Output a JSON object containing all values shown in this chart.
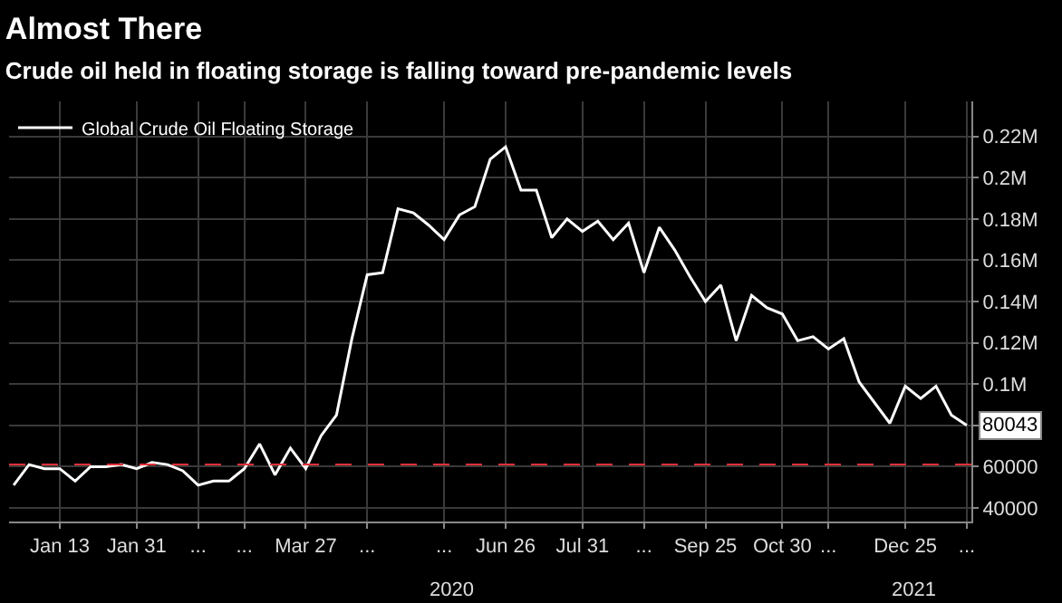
{
  "chart_data": {
    "type": "line",
    "title": "Almost There",
    "subtitle": "Crude oil held in floating storage is falling toward pre-pandemic levels",
    "categories": [
      null,
      null,
      null,
      "Jan 13",
      null,
      null,
      null,
      null,
      "Jan 31",
      null,
      null,
      null,
      "...",
      null,
      null,
      "...",
      null,
      null,
      null,
      "Mar 27",
      null,
      null,
      null,
      "...",
      null,
      null,
      null,
      null,
      "...",
      null,
      null,
      null,
      "Jun 26",
      null,
      null,
      null,
      null,
      "Jul 31",
      null,
      null,
      null,
      "...",
      null,
      null,
      null,
      "Sep 25",
      null,
      null,
      null,
      null,
      "Oct 30",
      null,
      null,
      "...",
      null,
      null,
      null,
      null,
      "Dec 25",
      null,
      null,
      null,
      "..."
    ],
    "series": [
      {
        "name": "Global Crude Oil Floating Storage",
        "color": "#ffffff",
        "values": [
          51000,
          61000,
          59000,
          59000,
          53000,
          60000,
          60000,
          61000,
          59000,
          62000,
          61000,
          58000,
          51000,
          53000,
          53000,
          59000,
          71000,
          56000,
          69000,
          59000,
          75000,
          85000,
          122000,
          153000,
          154000,
          185000,
          183000,
          177000,
          170000,
          182000,
          186000,
          209000,
          215000,
          194000,
          194000,
          171000,
          180000,
          174000,
          179000,
          170000,
          178000,
          154000,
          176000,
          165000,
          152000,
          140000,
          148000,
          121000,
          143000,
          137000,
          134000,
          121000,
          123000,
          117000,
          122000,
          101000,
          91000,
          81000,
          99000,
          93000,
          99000,
          85000,
          80043
        ],
        "value_labels": [
          null,
          null,
          null,
          null,
          null,
          null,
          null,
          null,
          null,
          null,
          null,
          null,
          null,
          null,
          null,
          null,
          null,
          null,
          null,
          null,
          null,
          null,
          null,
          null,
          null,
          null,
          null,
          null,
          null,
          null,
          null,
          null,
          null,
          null,
          null,
          null,
          null,
          null,
          null,
          null,
          null,
          null,
          null,
          null,
          null,
          null,
          null,
          null,
          null,
          null,
          null,
          null,
          null,
          null,
          null,
          null,
          null,
          null,
          null,
          null,
          null,
          null,
          "80043"
        ]
      }
    ],
    "ylim": [
      33400,
      237000
    ],
    "yticks": [
      40000,
      60000,
      {
        "value": 80000,
        "label": null
      },
      {
        "value": 100000,
        "label": "0.1M"
      },
      {
        "value": 120000,
        "label": "0.12M"
      },
      {
        "value": 140000,
        "label": "0.14M"
      },
      {
        "value": 160000,
        "label": "0.16M"
      },
      {
        "value": 180000,
        "label": "0.18M"
      },
      {
        "value": 200000,
        "label": "0.2M"
      },
      {
        "value": 220000,
        "label": "0.22M"
      }
    ],
    "ref_lines": [
      {
        "axis": "y",
        "value": 61000,
        "color": "#e0303a",
        "line_style": "dashed"
      }
    ],
    "annotations": [
      "2020",
      "2021"
    ],
    "grid": true,
    "legend": "top left",
    "marker": "none",
    "line_style": "solid"
  }
}
